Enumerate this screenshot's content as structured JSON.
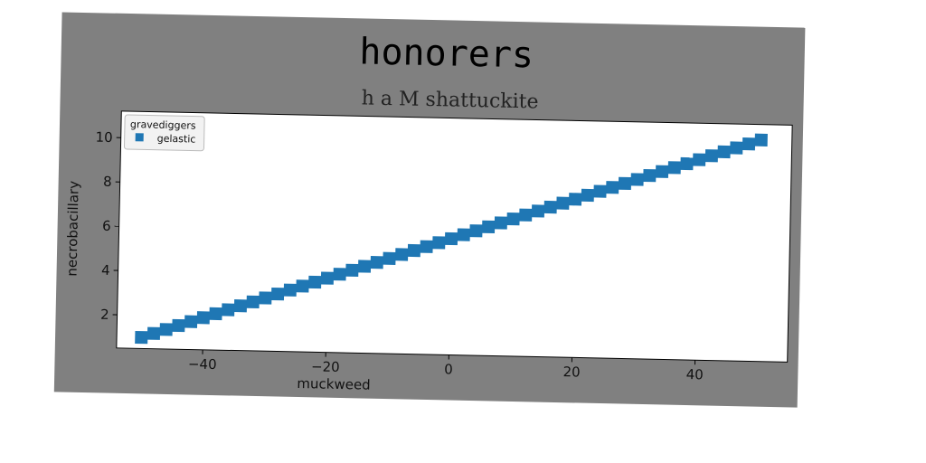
{
  "colors": {
    "figure_bg": "#808080",
    "plot_bg": "#ffffff",
    "series": "#1f77b4",
    "axis": "#000000"
  },
  "chart_data": {
    "type": "scatter",
    "title": "honorers",
    "subtitle": "h a M shattuckite",
    "xlabel": "muckweed",
    "ylabel": "necrobacillary",
    "xlim": [
      -54,
      55
    ],
    "ylim": [
      0.5,
      11.2
    ],
    "xticks": [
      -40,
      -20,
      0,
      20,
      40
    ],
    "xtick_labels": [
      "−40",
      "−20",
      "0",
      "20",
      "40"
    ],
    "yticks": [
      2,
      4,
      6,
      8,
      10
    ],
    "ytick_labels": [
      "2",
      "4",
      "6",
      "8",
      "10"
    ],
    "grid": false,
    "legend": {
      "title": "gravediggers",
      "placement": "top-left"
    },
    "series": [
      {
        "name": "gelastic",
        "marker": "square",
        "x": [
          -50,
          -48,
          -46,
          -44,
          -42,
          -40,
          -38,
          -36,
          -34,
          -32,
          -30,
          -28,
          -26,
          -24,
          -22,
          -20,
          -18,
          -16,
          -14,
          -12,
          -10,
          -8,
          -6,
          -4,
          -2,
          0,
          2,
          4,
          6,
          8,
          10,
          12,
          14,
          16,
          18,
          20,
          22,
          24,
          26,
          28,
          30,
          32,
          34,
          36,
          38,
          40,
          42,
          44,
          46,
          48,
          50
        ],
        "y": [
          1.0,
          1.19,
          1.38,
          1.57,
          1.76,
          1.95,
          2.14,
          2.33,
          2.52,
          2.71,
          2.9,
          3.09,
          3.28,
          3.47,
          3.66,
          3.85,
          4.04,
          4.23,
          4.42,
          4.61,
          4.8,
          4.99,
          5.18,
          5.37,
          5.56,
          5.75,
          5.94,
          6.13,
          6.32,
          6.51,
          6.7,
          6.89,
          7.08,
          7.27,
          7.46,
          7.65,
          7.84,
          8.03,
          8.22,
          8.41,
          8.6,
          8.79,
          8.98,
          9.17,
          9.36,
          9.55,
          9.74,
          9.93,
          10.12,
          10.31,
          10.5
        ]
      }
    ]
  }
}
